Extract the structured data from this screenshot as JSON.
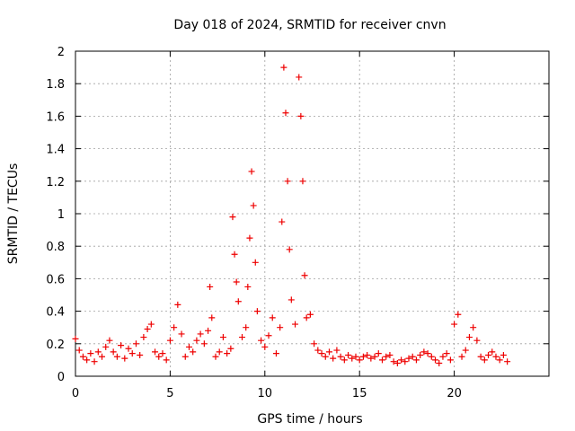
{
  "chart_data": {
    "type": "scatter",
    "title": "Day 018 of 2024, SRMTID for receiver cnvn",
    "xlabel": "GPS time / hours",
    "ylabel": "SRMTID / TECUs",
    "xlim": [
      0,
      25
    ],
    "ylim": [
      0,
      2
    ],
    "xticks": [
      0,
      5,
      10,
      15,
      20
    ],
    "xtick_labels": [
      "0",
      "5",
      "10",
      "15",
      "20"
    ],
    "yticks": [
      0,
      0.2,
      0.4,
      0.6,
      0.8,
      1.0,
      1.2,
      1.4,
      1.6,
      1.8,
      2.0
    ],
    "ytick_labels": [
      "0",
      "0.2",
      "0.4",
      "0.6",
      "0.8",
      "1",
      "1.2",
      "1.4",
      "1.6",
      "1.8",
      "2"
    ],
    "grid": true,
    "marker": "+",
    "marker_color": "#ee0000",
    "series": [
      {
        "name": "SRMTID",
        "points": [
          [
            0.0,
            0.23
          ],
          [
            0.2,
            0.16
          ],
          [
            0.4,
            0.12
          ],
          [
            0.6,
            0.1
          ],
          [
            0.8,
            0.14
          ],
          [
            1.0,
            0.09
          ],
          [
            1.2,
            0.15
          ],
          [
            1.4,
            0.12
          ],
          [
            1.6,
            0.18
          ],
          [
            1.8,
            0.22
          ],
          [
            2.0,
            0.15
          ],
          [
            2.2,
            0.12
          ],
          [
            2.4,
            0.19
          ],
          [
            2.6,
            0.11
          ],
          [
            2.8,
            0.17
          ],
          [
            3.0,
            0.14
          ],
          [
            3.2,
            0.2
          ],
          [
            3.4,
            0.13
          ],
          [
            3.6,
            0.24
          ],
          [
            3.8,
            0.29
          ],
          [
            4.0,
            0.32
          ],
          [
            4.2,
            0.15
          ],
          [
            4.4,
            0.12
          ],
          [
            4.6,
            0.14
          ],
          [
            4.8,
            0.1
          ],
          [
            5.0,
            0.22
          ],
          [
            5.2,
            0.3
          ],
          [
            5.4,
            0.44
          ],
          [
            5.6,
            0.26
          ],
          [
            5.8,
            0.12
          ],
          [
            6.0,
            0.18
          ],
          [
            6.2,
            0.15
          ],
          [
            6.4,
            0.22
          ],
          [
            6.6,
            0.26
          ],
          [
            6.8,
            0.2
          ],
          [
            7.0,
            0.28
          ],
          [
            7.1,
            0.55
          ],
          [
            7.2,
            0.36
          ],
          [
            7.4,
            0.12
          ],
          [
            7.6,
            0.15
          ],
          [
            7.8,
            0.24
          ],
          [
            8.0,
            0.14
          ],
          [
            8.2,
            0.17
          ],
          [
            8.3,
            0.98
          ],
          [
            8.4,
            0.75
          ],
          [
            8.5,
            0.58
          ],
          [
            8.6,
            0.46
          ],
          [
            8.8,
            0.24
          ],
          [
            9.0,
            0.3
          ],
          [
            9.1,
            0.55
          ],
          [
            9.2,
            0.85
          ],
          [
            9.3,
            1.26
          ],
          [
            9.4,
            1.05
          ],
          [
            9.5,
            0.7
          ],
          [
            9.6,
            0.4
          ],
          [
            9.8,
            0.22
          ],
          [
            10.0,
            0.18
          ],
          [
            10.2,
            0.25
          ],
          [
            10.4,
            0.36
          ],
          [
            10.6,
            0.14
          ],
          [
            10.8,
            0.3
          ],
          [
            10.9,
            0.95
          ],
          [
            11.0,
            1.9
          ],
          [
            11.1,
            1.62
          ],
          [
            11.2,
            1.2
          ],
          [
            11.3,
            0.78
          ],
          [
            11.4,
            0.47
          ],
          [
            11.6,
            0.32
          ],
          [
            11.8,
            1.84
          ],
          [
            11.9,
            1.6
          ],
          [
            12.0,
            1.2
          ],
          [
            12.1,
            0.62
          ],
          [
            12.2,
            0.36
          ],
          [
            12.4,
            0.38
          ],
          [
            12.6,
            0.2
          ],
          [
            12.8,
            0.16
          ],
          [
            13.0,
            0.14
          ],
          [
            13.2,
            0.12
          ],
          [
            13.4,
            0.15
          ],
          [
            13.6,
            0.11
          ],
          [
            13.8,
            0.16
          ],
          [
            14.0,
            0.12
          ],
          [
            14.2,
            0.1
          ],
          [
            14.4,
            0.13
          ],
          [
            14.6,
            0.11
          ],
          [
            14.8,
            0.12
          ],
          [
            15.0,
            0.1
          ],
          [
            15.2,
            0.12
          ],
          [
            15.4,
            0.13
          ],
          [
            15.6,
            0.11
          ],
          [
            15.8,
            0.12
          ],
          [
            16.0,
            0.14
          ],
          [
            16.2,
            0.1
          ],
          [
            16.4,
            0.12
          ],
          [
            16.6,
            0.13
          ],
          [
            16.8,
            0.09
          ],
          [
            17.0,
            0.08
          ],
          [
            17.2,
            0.1
          ],
          [
            17.4,
            0.09
          ],
          [
            17.6,
            0.11
          ],
          [
            17.8,
            0.12
          ],
          [
            18.0,
            0.1
          ],
          [
            18.2,
            0.13
          ],
          [
            18.4,
            0.15
          ],
          [
            18.6,
            0.14
          ],
          [
            18.8,
            0.12
          ],
          [
            19.0,
            0.1
          ],
          [
            19.2,
            0.08
          ],
          [
            19.4,
            0.12
          ],
          [
            19.6,
            0.14
          ],
          [
            19.8,
            0.1
          ],
          [
            20.0,
            0.32
          ],
          [
            20.2,
            0.38
          ],
          [
            20.4,
            0.12
          ],
          [
            20.6,
            0.16
          ],
          [
            20.8,
            0.24
          ],
          [
            21.0,
            0.3
          ],
          [
            21.2,
            0.22
          ],
          [
            21.4,
            0.12
          ],
          [
            21.6,
            0.1
          ],
          [
            21.8,
            0.13
          ],
          [
            22.0,
            0.15
          ],
          [
            22.2,
            0.12
          ],
          [
            22.4,
            0.1
          ],
          [
            22.6,
            0.13
          ],
          [
            22.8,
            0.09
          ]
        ]
      }
    ]
  }
}
